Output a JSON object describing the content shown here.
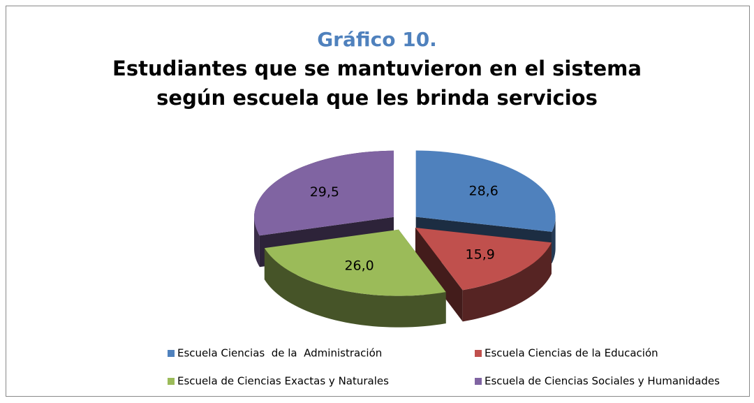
{
  "chart_data": {
    "type": "pie3d",
    "title": "Gráfico 10.",
    "subtitle": "Estudiantes que se mantuvieron en el sistema según escuela que les brinda servicios",
    "categories": [
      "Escuela Ciencias  de la  Administración",
      "Escuela Ciencias de la Educación",
      "Escuela de Ciencias Exactas y Naturales",
      "Escuela de Ciencias Sociales y Humanidades"
    ],
    "values": [
      28.6,
      15.9,
      26.0,
      29.5
    ],
    "value_labels": [
      "28,6",
      "15,9",
      "26,0",
      "29,5"
    ],
    "colors": [
      "#4f81bd",
      "#c0504d",
      "#9bbb59",
      "#8064a2"
    ],
    "legend": "bottom"
  }
}
